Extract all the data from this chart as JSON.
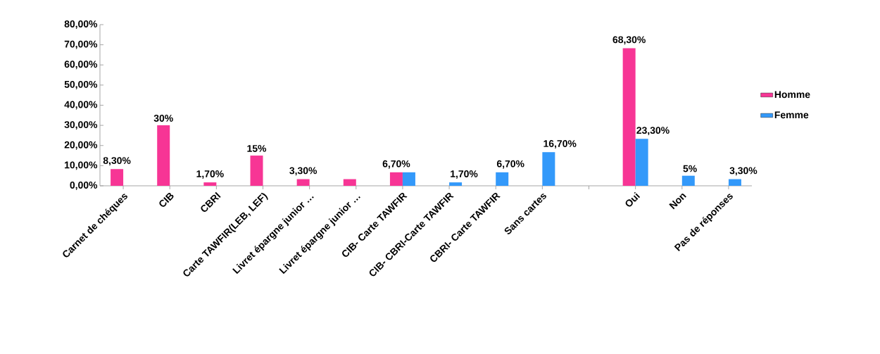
{
  "chart_data": {
    "type": "bar",
    "categories": [
      "Carnet de chéques",
      "CIB",
      "CBRI",
      "Carte TAWFIR(LEB, LEF)",
      "Livret épargne junior …",
      "Livret épargne junior …",
      "CIB- Carte TAWFIR",
      "CIB- CBRI-Carte TAWFIR",
      "CBRI- Carte TAWFIR",
      "Sans cartes",
      null,
      "Oui",
      "Non",
      "Pas de réponses"
    ],
    "series": [
      {
        "name": "Homme",
        "color": "#f73595",
        "values": [
          8.3,
          30,
          1.7,
          15,
          3.3,
          3.3,
          6.7,
          null,
          null,
          null,
          null,
          68.3,
          null,
          null
        ],
        "value_labels": [
          "8,30%",
          "30%",
          "1,70%",
          "15%",
          "3,30%",
          null,
          "6,70%",
          null,
          null,
          null,
          null,
          "68,30%",
          null,
          null
        ]
      },
      {
        "name": "Femme",
        "color": "#3399fa",
        "values": [
          null,
          null,
          null,
          null,
          null,
          null,
          6.7,
          1.7,
          6.7,
          16.7,
          null,
          23.3,
          5,
          3.3
        ],
        "value_labels": [
          null,
          null,
          null,
          null,
          null,
          null,
          null,
          "1,70%",
          "6,70%",
          "16,70%",
          null,
          "23,30%",
          "5%",
          "3,30%"
        ]
      }
    ],
    "ylim": [
      0,
      80
    ],
    "yticks": [
      {
        "value": 0,
        "label": "0,00%"
      },
      {
        "value": 10,
        "label": "10,00%"
      },
      {
        "value": 20,
        "label": "20,00%"
      },
      {
        "value": 30,
        "label": "30,00%"
      },
      {
        "value": 40,
        "label": "40,00%"
      },
      {
        "value": 50,
        "label": "50,00%"
      },
      {
        "value": 60,
        "label": "60,00%"
      },
      {
        "value": 70,
        "label": "70,00%"
      },
      {
        "value": 80,
        "label": "80,00%"
      }
    ],
    "grid": false,
    "legend": "right"
  }
}
